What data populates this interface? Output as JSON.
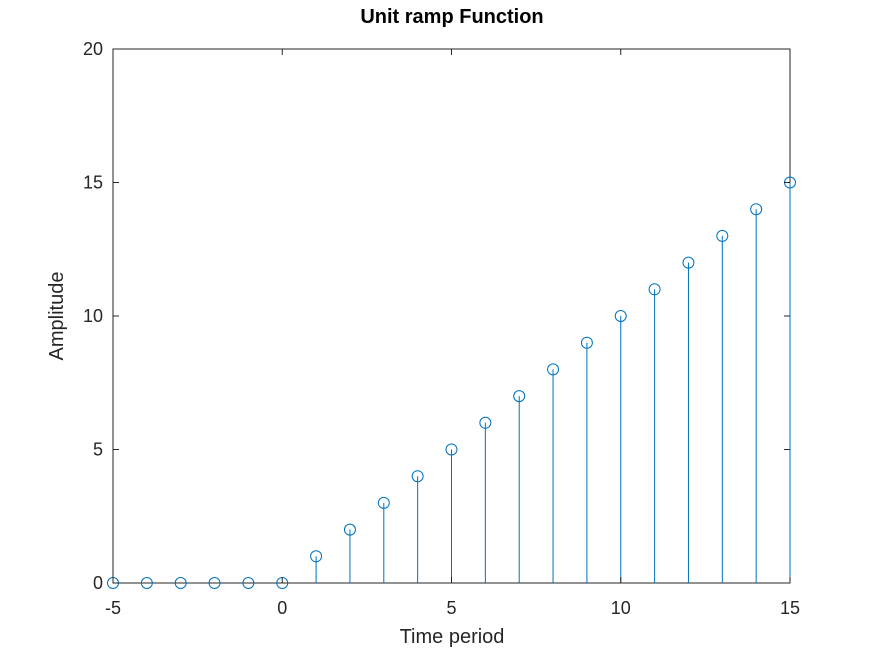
{
  "chart_data": {
    "type": "stem",
    "title": "Unit ramp Function",
    "xlabel": "Time period",
    "ylabel": "Amplitude",
    "xlim": [
      -5,
      15
    ],
    "ylim": [
      0,
      20
    ],
    "xticks": [
      -5,
      0,
      5,
      10,
      15
    ],
    "yticks": [
      0,
      5,
      10,
      15,
      20
    ],
    "x": [
      -5,
      -4,
      -3,
      -2,
      -1,
      0,
      1,
      2,
      3,
      4,
      5,
      6,
      7,
      8,
      9,
      10,
      11,
      12,
      13,
      14,
      15
    ],
    "y": [
      0,
      0,
      0,
      0,
      0,
      0,
      1,
      2,
      3,
      4,
      5,
      6,
      7,
      8,
      9,
      10,
      11,
      12,
      13,
      14,
      15
    ],
    "color": "#0072bd",
    "marker": "circle",
    "grid": false
  }
}
